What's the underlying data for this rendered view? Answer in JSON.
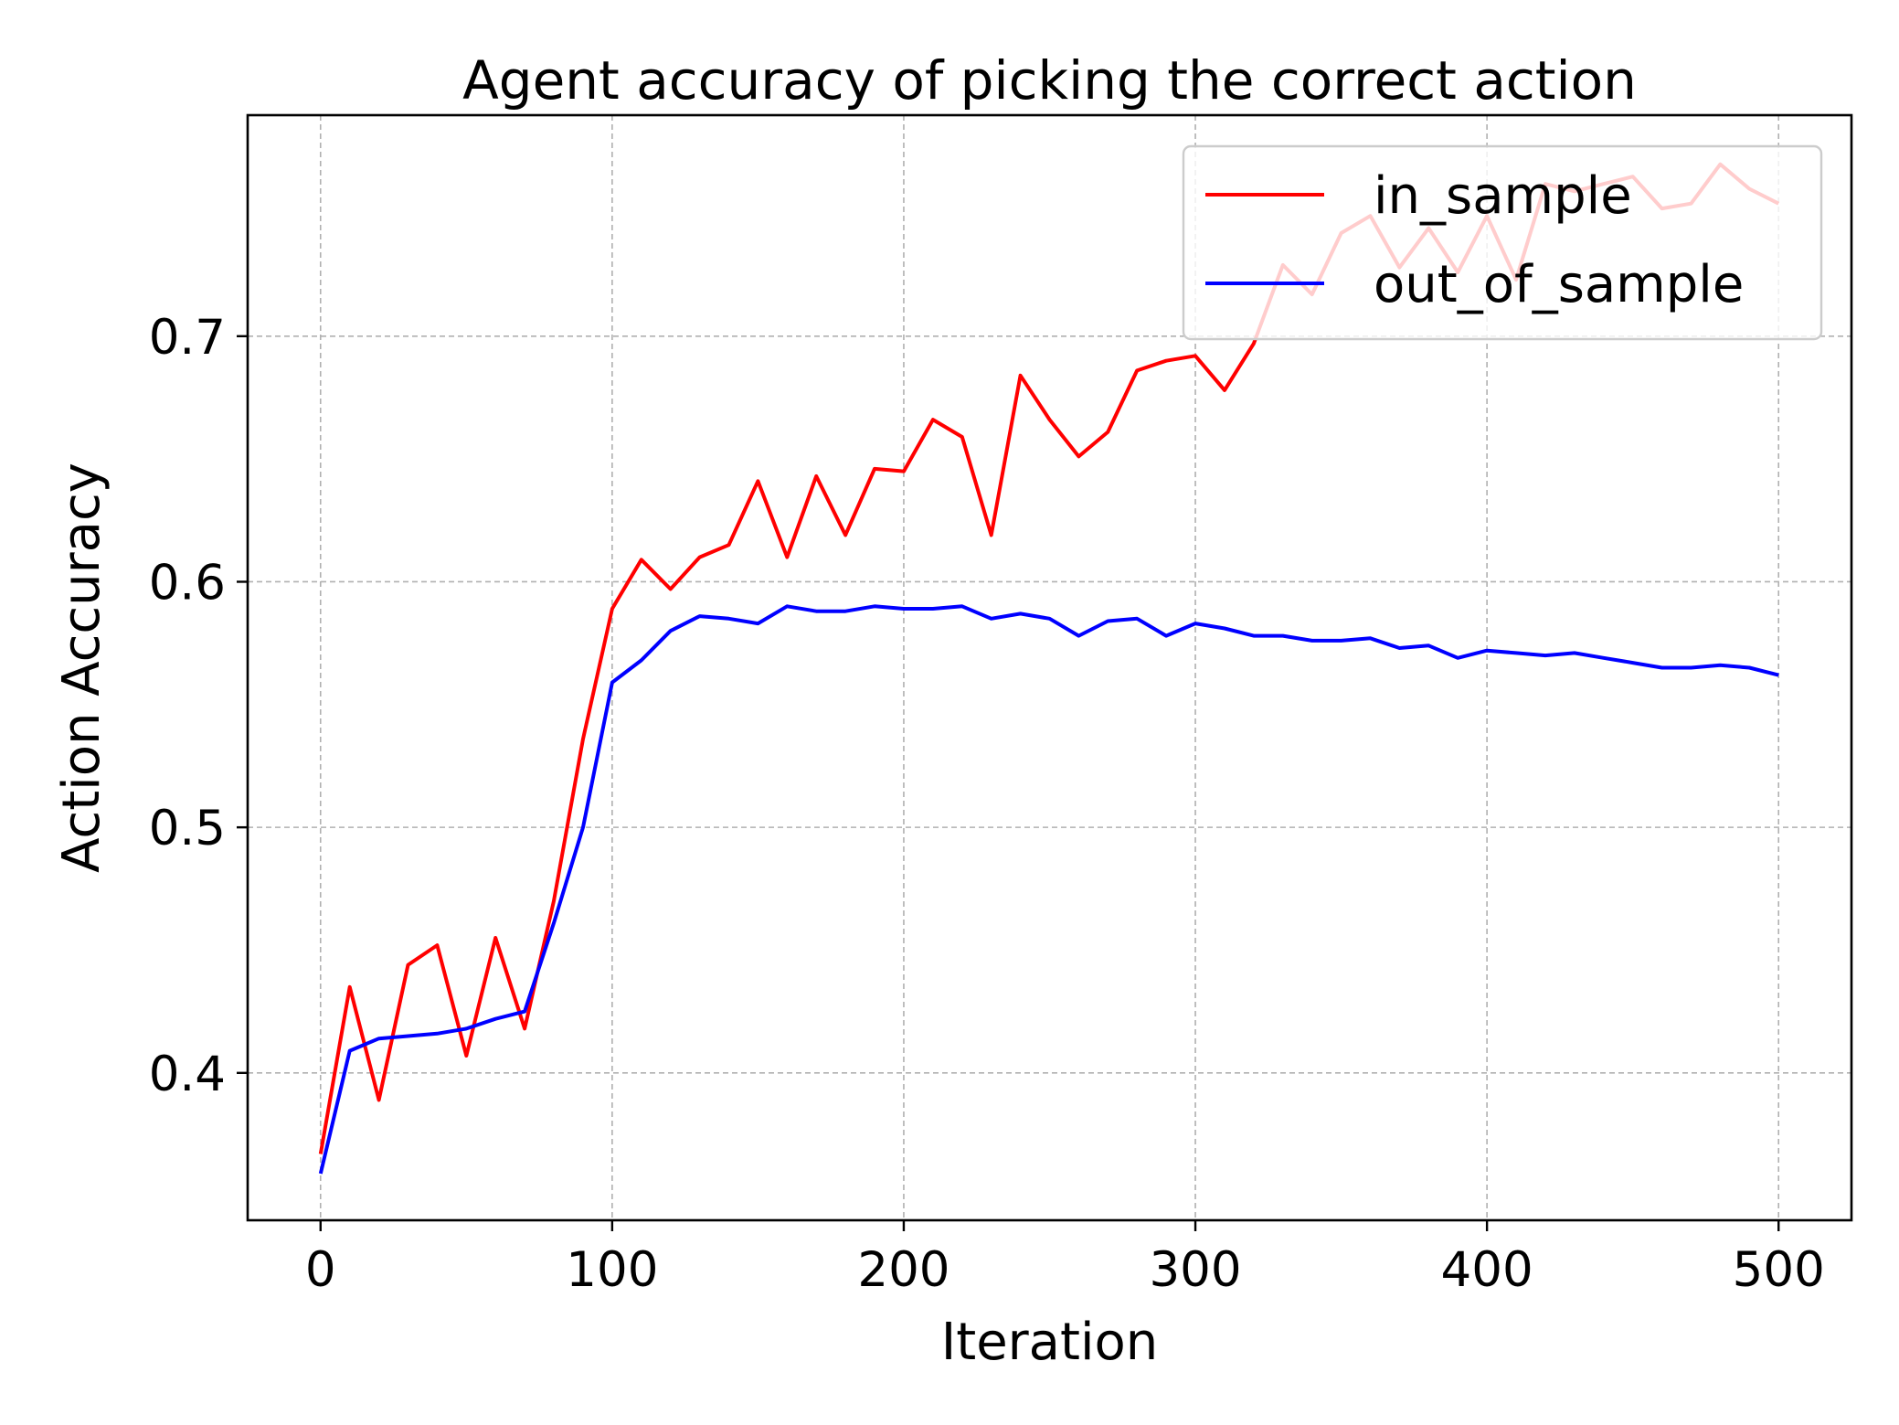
{
  "chart_data": {
    "type": "line",
    "title": "Agent accuracy of picking the correct action",
    "xlabel": "Iteration",
    "ylabel": "Action Accuracy",
    "xlim": [
      -25,
      525
    ],
    "ylim": [
      0.34,
      0.79
    ],
    "xticks": [
      0,
      100,
      200,
      300,
      400,
      500
    ],
    "xtick_labels": [
      "0",
      "100",
      "200",
      "300",
      "400",
      "500"
    ],
    "yticks": [
      0.4,
      0.5,
      0.6,
      0.7
    ],
    "ytick_labels": [
      "0.4",
      "0.5",
      "0.6",
      "0.7"
    ],
    "grid": true,
    "legend_position": "top-right",
    "x": [
      0,
      10,
      20,
      30,
      40,
      50,
      60,
      70,
      80,
      90,
      100,
      110,
      120,
      130,
      140,
      150,
      160,
      170,
      180,
      190,
      200,
      210,
      220,
      230,
      240,
      250,
      260,
      270,
      280,
      290,
      300,
      310,
      320,
      330,
      340,
      350,
      360,
      370,
      380,
      390,
      400,
      410,
      420,
      430,
      440,
      450,
      460,
      470,
      480,
      490,
      500
    ],
    "series": [
      {
        "name": "in_sample",
        "color": "#ff0000",
        "values": [
          0.367,
          0.435,
          0.389,
          0.444,
          0.452,
          0.407,
          0.455,
          0.418,
          0.47,
          0.536,
          0.589,
          0.609,
          0.597,
          0.61,
          0.615,
          0.641,
          0.61,
          0.643,
          0.619,
          0.646,
          0.645,
          0.666,
          0.659,
          0.619,
          0.684,
          0.666,
          0.651,
          0.661,
          0.686,
          0.69,
          0.692,
          0.678,
          0.697,
          0.729,
          0.717,
          0.742,
          0.749,
          0.728,
          0.744,
          0.726,
          0.749,
          0.723,
          0.762,
          0.759,
          0.762,
          0.765,
          0.752,
          0.754,
          0.77,
          0.76,
          0.754
        ]
      },
      {
        "name": "out_of_sample",
        "color": "#0000ff",
        "values": [
          0.359,
          0.409,
          0.414,
          0.415,
          0.416,
          0.418,
          0.422,
          0.425,
          0.461,
          0.5,
          0.559,
          0.568,
          0.58,
          0.586,
          0.585,
          0.583,
          0.59,
          0.588,
          0.588,
          0.59,
          0.589,
          0.589,
          0.59,
          0.585,
          0.587,
          0.585,
          0.578,
          0.584,
          0.585,
          0.578,
          0.583,
          0.581,
          0.578,
          0.578,
          0.576,
          0.576,
          0.577,
          0.573,
          0.574,
          0.569,
          0.572,
          0.571,
          0.57,
          0.571,
          0.569,
          0.567,
          0.565,
          0.565,
          0.566,
          0.565,
          0.562
        ]
      }
    ]
  }
}
